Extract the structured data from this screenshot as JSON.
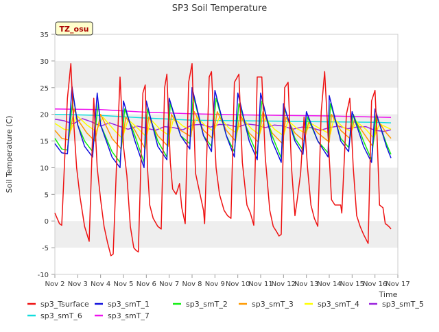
{
  "chart_data": {
    "type": "line",
    "title": "SP3 Soil Temperature",
    "ylabel": "Soil Temperature (C)",
    "xlabel": "Time",
    "station_label": "TZ_osu",
    "ylim": [
      -10,
      35
    ],
    "xlim": [
      0,
      15
    ],
    "y_ticks": [
      -10,
      -5,
      0,
      5,
      10,
      15,
      20,
      25,
      30,
      35
    ],
    "x_ticks": [
      {
        "v": 0,
        "label": "Nov 2"
      },
      {
        "v": 1,
        "label": "Nov 3"
      },
      {
        "v": 2,
        "label": "Nov 4"
      },
      {
        "v": 3,
        "label": "Nov 5"
      },
      {
        "v": 4,
        "label": "Nov 6"
      },
      {
        "v": 5,
        "label": "Nov 7"
      },
      {
        "v": 6,
        "label": "Nov 8"
      },
      {
        "v": 7,
        "label": "Nov 9"
      },
      {
        "v": 8,
        "label": "Nov 10"
      },
      {
        "v": 9,
        "label": "Nov 11"
      },
      {
        "v": 10,
        "label": "Nov 12"
      },
      {
        "v": 11,
        "label": "Nov 13"
      },
      {
        "v": 12,
        "label": "Nov 14"
      },
      {
        "v": 13,
        "label": "Nov 15"
      },
      {
        "v": 14,
        "label": "Nov 16"
      },
      {
        "v": 15,
        "label": "Nov 17"
      }
    ],
    "grid": "horizontal-bands",
    "legend_placement": "bottom",
    "series": [
      {
        "name": "sp3_Tsurface",
        "color": "#ee1111",
        "x": [
          0.0,
          0.1,
          0.2,
          0.3,
          0.55,
          0.7,
          0.8,
          0.95,
          1.1,
          1.3,
          1.5,
          1.7,
          1.85,
          2.0,
          2.15,
          2.3,
          2.45,
          2.55,
          2.7,
          2.85,
          3.0,
          3.15,
          3.3,
          3.45,
          3.55,
          3.65,
          3.85,
          3.95,
          4.05,
          4.15,
          4.3,
          4.5,
          4.65,
          4.8,
          4.9,
          5.05,
          5.15,
          5.3,
          5.45,
          5.55,
          5.7,
          5.85,
          6.0,
          6.15,
          6.3,
          6.5,
          6.55,
          6.75,
          6.85,
          7.05,
          7.2,
          7.4,
          7.55,
          7.7,
          7.85,
          8.05,
          8.2,
          8.4,
          8.55,
          8.7,
          8.85,
          9.05,
          9.2,
          9.4,
          9.55,
          9.7,
          9.8,
          9.9,
          10.05,
          10.2,
          10.35,
          10.5,
          10.6,
          10.75,
          10.9,
          11.05,
          11.2,
          11.35,
          11.5,
          11.65,
          11.8,
          11.95,
          12.1,
          12.25,
          12.5,
          12.55,
          12.75,
          12.9,
          13.05,
          13.2,
          13.35,
          13.5,
          13.7,
          13.85,
          14.0,
          14.1,
          14.2,
          14.35,
          14.45,
          14.55,
          14.65,
          14.7
        ],
        "y": [
          1.5,
          0.5,
          -0.5,
          -0.8,
          23,
          29.5,
          20,
          10,
          4.5,
          -1,
          -3.8,
          23,
          10,
          4,
          -1,
          -4,
          -6.5,
          -6.2,
          11,
          27,
          14,
          8.5,
          -1,
          -5,
          -5.5,
          -5.8,
          24,
          25.5,
          10,
          3,
          0.5,
          -1,
          -1.5,
          25,
          27.5,
          11,
          6,
          5,
          7,
          2.5,
          -0.5,
          26,
          29.5,
          9,
          6,
          2,
          -0.5,
          27,
          28,
          10,
          5,
          2,
          1,
          0.5,
          26,
          27.5,
          11,
          3,
          1.5,
          -0.8,
          27,
          27,
          12,
          2,
          -1,
          -2,
          -2.8,
          -2.5,
          25,
          26,
          10,
          1,
          4,
          9,
          19.5,
          10,
          3,
          0.5,
          -1,
          20.5,
          28,
          16,
          4,
          3,
          3,
          1.5,
          20,
          23,
          10,
          1,
          -1,
          -2.5,
          -4.2,
          22.5,
          24.5,
          15,
          3,
          2.5,
          -0.5,
          -0.8,
          -1.2,
          -1.5
        ]
      },
      {
        "name": "sp3_smT_1",
        "color": "#1111dd",
        "x": [
          0.0,
          0.3,
          0.55,
          0.75,
          1.0,
          1.3,
          1.65,
          1.85,
          2.0,
          2.5,
          2.85,
          3.0,
          3.5,
          3.9,
          4.0,
          4.5,
          4.9,
          5.0,
          5.5,
          5.9,
          6.0,
          6.5,
          6.85,
          7.0,
          7.5,
          7.85,
          8.0,
          8.5,
          8.85,
          9.0,
          9.5,
          9.9,
          10.0,
          10.5,
          10.85,
          11.0,
          11.5,
          11.95,
          12.0,
          12.5,
          12.85,
          13.0,
          13.5,
          13.85,
          14.0,
          14.5,
          14.7
        ],
        "y": [
          14.5,
          12.8,
          12.6,
          25.2,
          18,
          14,
          12,
          24,
          18,
          12,
          10,
          22.5,
          15,
          10,
          22.5,
          14,
          11.5,
          23,
          16,
          13.5,
          25,
          16,
          13,
          24.5,
          16,
          12,
          24,
          15,
          11.5,
          24,
          15,
          11,
          22,
          15,
          12.5,
          20.5,
          15,
          12,
          23.5,
          15,
          13,
          20.5,
          14,
          11,
          21,
          14,
          11.8
        ]
      },
      {
        "name": "sp3_smT_2",
        "color": "#11ee11",
        "x": [
          0.0,
          0.3,
          0.55,
          0.8,
          1.0,
          1.3,
          1.65,
          1.9,
          2.0,
          2.5,
          2.85,
          3.05,
          3.5,
          3.9,
          4.05,
          4.5,
          4.9,
          5.05,
          5.5,
          5.9,
          6.05,
          6.5,
          6.85,
          7.05,
          7.5,
          7.85,
          8.05,
          8.5,
          8.85,
          9.05,
          9.5,
          9.9,
          10.05,
          10.5,
          10.85,
          11.05,
          11.5,
          11.95,
          12.05,
          12.5,
          12.85,
          13.05,
          13.5,
          13.85,
          14.05,
          14.5,
          14.7
        ],
        "y": [
          15.5,
          13.5,
          13.3,
          23.5,
          18,
          15,
          13,
          22,
          18,
          13,
          11,
          21,
          16,
          11,
          21,
          15,
          12,
          22,
          16,
          14.5,
          23.5,
          16,
          14,
          23,
          16,
          13,
          22,
          16,
          12.5,
          22.5,
          16,
          11.8,
          21,
          15.5,
          13.3,
          19.5,
          15,
          12.8,
          22,
          15.5,
          13.8,
          20,
          15,
          11.5,
          20,
          14.5,
          12.5
        ]
      },
      {
        "name": "sp3_smT_3",
        "color": "#ff9900",
        "x": [
          0.0,
          0.3,
          0.6,
          0.85,
          1.0,
          1.4,
          1.75,
          2.0,
          2.5,
          2.9,
          3.1,
          3.5,
          3.95,
          4.1,
          4.5,
          4.95,
          5.1,
          5.5,
          5.95,
          6.1,
          6.5,
          6.9,
          7.1,
          7.5,
          7.9,
          8.1,
          8.5,
          8.9,
          9.1,
          9.5,
          9.95,
          10.1,
          10.5,
          10.9,
          11.1,
          11.5,
          12.0,
          12.1,
          12.5,
          12.9,
          13.1,
          13.5,
          13.9,
          14.1,
          14.5,
          14.7
        ],
        "y": [
          17,
          15.5,
          15.2,
          21,
          19,
          16.5,
          15,
          20,
          15.5,
          13.5,
          19.5,
          17,
          13.5,
          19.5,
          16,
          14,
          20,
          17,
          15.8,
          20.5,
          17,
          15.5,
          20.5,
          17,
          15,
          20,
          16.5,
          14.8,
          20.5,
          16.5,
          14.5,
          19.5,
          16.5,
          15,
          18.5,
          16.5,
          14.8,
          20,
          17,
          15.5,
          19,
          16.5,
          14,
          19,
          16.5,
          15.5
        ]
      },
      {
        "name": "sp3_smT_4",
        "color": "#ffff00",
        "x": [
          0.0,
          0.4,
          0.7,
          0.95,
          1.4,
          1.8,
          2.1,
          2.6,
          2.95,
          3.2,
          3.6,
          4.0,
          4.2,
          4.6,
          5.0,
          5.2,
          5.6,
          6.0,
          6.2,
          6.6,
          6.95,
          7.2,
          7.6,
          7.95,
          8.2,
          8.6,
          8.95,
          9.2,
          9.6,
          10.0,
          10.2,
          10.6,
          10.95,
          11.2,
          11.6,
          12.05,
          12.2,
          12.6,
          12.95,
          13.2,
          13.6,
          13.95,
          14.2,
          14.7
        ],
        "y": [
          18.3,
          17.2,
          17,
          19.8,
          18,
          16.8,
          19.5,
          17,
          15.5,
          19,
          17.5,
          15.8,
          19,
          17.2,
          16,
          19.3,
          17.8,
          17,
          19.5,
          17.8,
          16.8,
          19.5,
          17.5,
          16.5,
          19.3,
          17.3,
          16.2,
          19.3,
          17.2,
          16,
          18.8,
          17.3,
          16.5,
          18.3,
          17.3,
          16.3,
          19.2,
          17.6,
          16.8,
          18.6,
          17.2,
          15.5,
          18.2,
          17.2
        ]
      },
      {
        "name": "sp3_smT_5",
        "color": "#9922dd",
        "x": [
          0.0,
          0.4,
          0.8,
          1.2,
          1.6,
          2.0,
          2.4,
          2.8,
          3.2,
          3.6,
          4.0,
          4.4,
          4.8,
          5.2,
          5.6,
          6.0,
          6.4,
          6.8,
          7.2,
          7.6,
          8.0,
          8.4,
          8.8,
          9.2,
          9.6,
          10.0,
          10.4,
          10.8,
          11.2,
          11.6,
          12.0,
          12.4,
          12.8,
          13.2,
          13.6,
          14.0,
          14.4,
          14.7
        ],
        "y": [
          19.1,
          18.8,
          18.2,
          19.2,
          18.6,
          17.8,
          18.4,
          17.8,
          17.2,
          17.8,
          17.4,
          17,
          17.7,
          17.5,
          17.1,
          18.0,
          18.1,
          17.6,
          18.1,
          18.0,
          17.6,
          18.2,
          18.0,
          17.5,
          18.0,
          17.8,
          17.2,
          17.6,
          17.5,
          17.0,
          17.5,
          17.8,
          17.3,
          17.6,
          17.7,
          17.0,
          16.8,
          17.1
        ]
      },
      {
        "name": "sp3_smT_6",
        "color": "#11dddd",
        "x": [
          0.0,
          2.0,
          4.0,
          6.0,
          8.0,
          10.0,
          12.0,
          14.0,
          14.7
        ],
        "y": [
          20.0,
          19.8,
          19.3,
          18.9,
          18.8,
          18.7,
          18.6,
          18.5,
          18.4
        ]
      },
      {
        "name": "sp3_smT_7",
        "color": "#ee11ee",
        "x": [
          0.0,
          2.0,
          4.0,
          6.0,
          8.0,
          10.0,
          12.0,
          14.0,
          14.7
        ],
        "y": [
          21.0,
          20.9,
          20.4,
          20.1,
          19.9,
          19.8,
          19.7,
          19.5,
          19.4
        ]
      }
    ]
  }
}
